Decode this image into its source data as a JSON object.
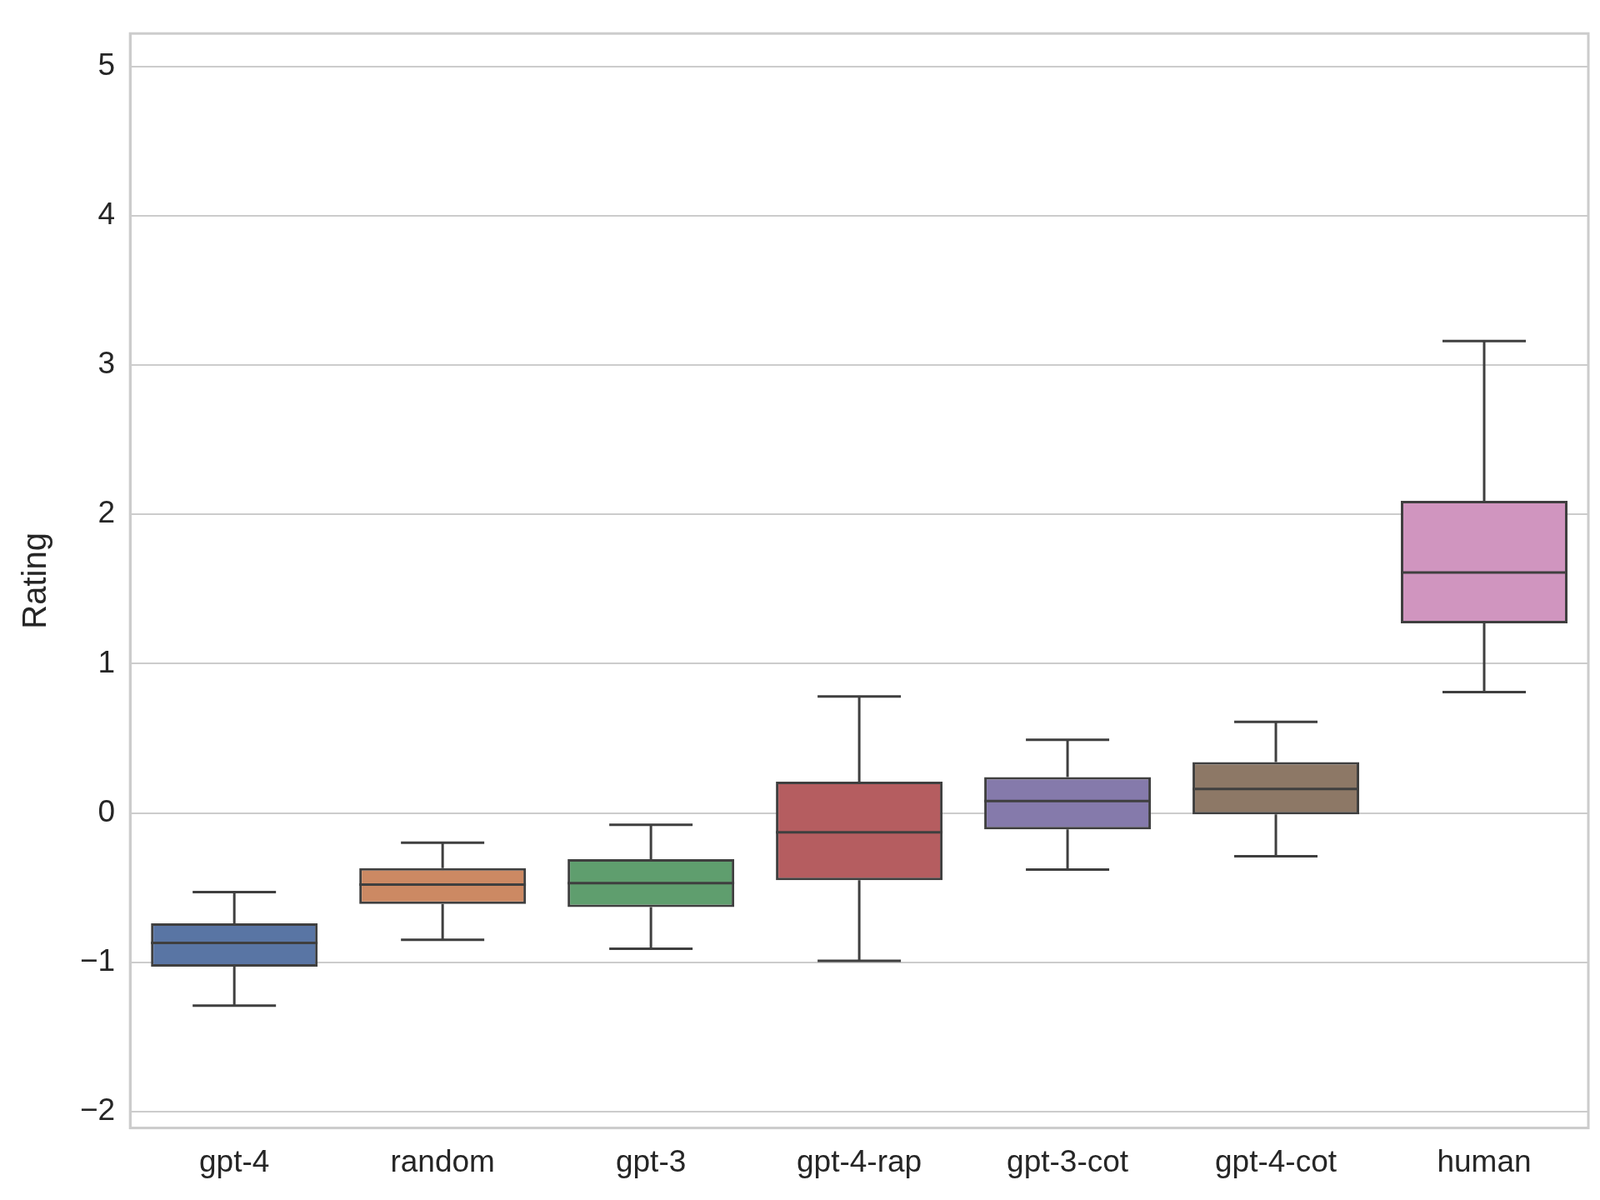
{
  "chart_data": {
    "type": "box",
    "y_label": "Rating",
    "categories": [
      "gpt-4",
      "random",
      "gpt-3",
      "gpt-4-rap",
      "gpt-3-cot",
      "gpt-4-cot",
      "human"
    ],
    "stats": [
      {
        "low": -1.29,
        "q1": -1.03,
        "median": -0.87,
        "q3": -0.74,
        "high": -0.53
      },
      {
        "low": -0.85,
        "q1": -0.61,
        "median": -0.48,
        "q3": -0.37,
        "high": -0.2
      },
      {
        "low": -0.91,
        "q1": -0.63,
        "median": -0.47,
        "q3": -0.31,
        "high": -0.08
      },
      {
        "low": -0.99,
        "q1": -0.45,
        "median": -0.13,
        "q3": 0.21,
        "high": 0.78
      },
      {
        "low": -0.38,
        "q1": -0.11,
        "median": 0.08,
        "q3": 0.24,
        "high": 0.49
      },
      {
        "low": -0.29,
        "q1": -0.01,
        "median": 0.16,
        "q3": 0.34,
        "high": 0.61
      },
      {
        "low": 0.81,
        "q1": 1.27,
        "median": 1.61,
        "q3": 2.09,
        "high": 3.16
      }
    ],
    "colors": [
      "#5975a4",
      "#cc8963",
      "#5f9e6e",
      "#b55d60",
      "#857aab",
      "#8d7866",
      "#d095bf"
    ],
    "ylim": [
      -2.11,
      5.22
    ],
    "yticks": [
      {
        "value": -2,
        "label": "−2"
      },
      {
        "value": -1,
        "label": "−1"
      },
      0,
      1,
      2,
      3,
      4,
      5
    ],
    "grid": true
  }
}
